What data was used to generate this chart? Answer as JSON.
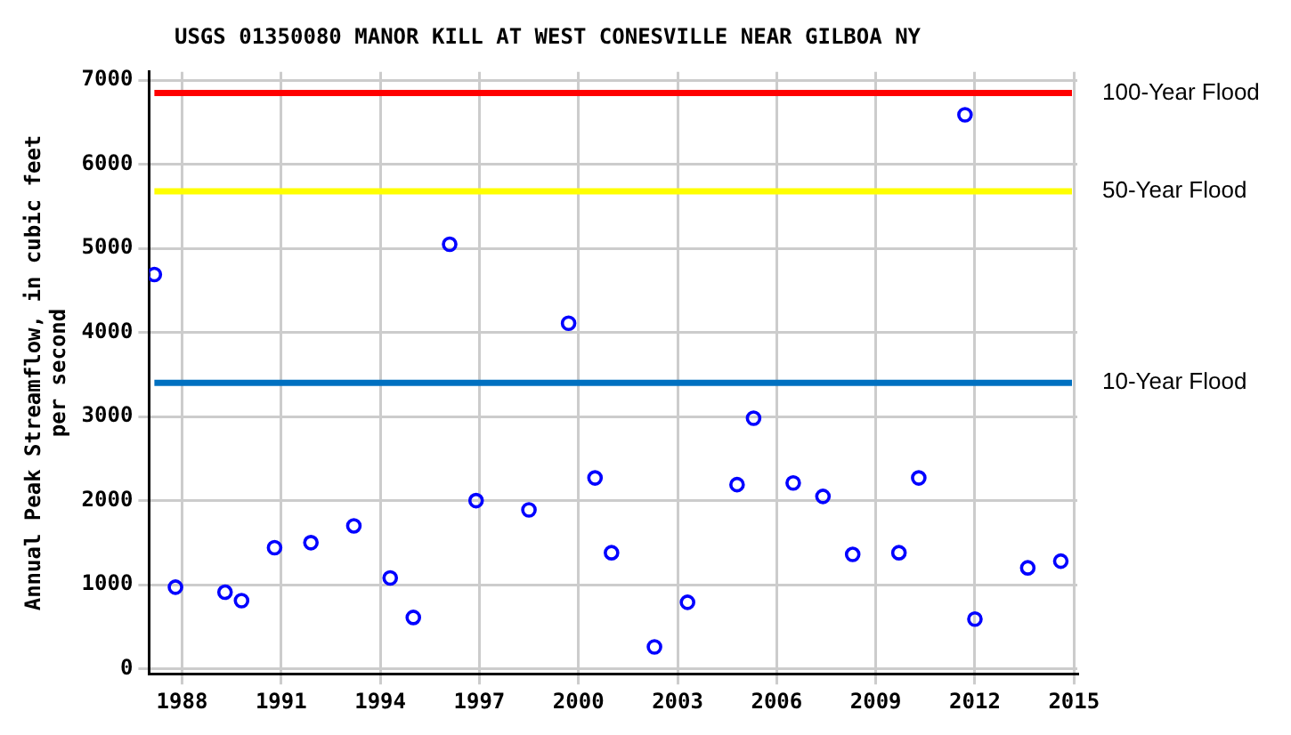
{
  "chart_data": {
    "type": "scatter",
    "title": "USGS 01350080 MANOR KILL AT WEST CONESVILLE NEAR GILBOA NY",
    "ylabel": "Annual Peak Streamflow, in cubic feet per second",
    "x": [
      1987.16,
      1987.8,
      1989.3,
      1989.8,
      1990.8,
      1991.9,
      1993.2,
      1994.3,
      1995.0,
      1996.1,
      1996.9,
      1998.5,
      1999.7,
      2000.5,
      2001.0,
      2002.3,
      2003.3,
      2004.8,
      2005.3,
      2006.5,
      2007.4,
      2008.3,
      2009.7,
      2010.3,
      2011.7,
      2012.0,
      2013.6,
      2014.6
    ],
    "series": [
      {
        "color": "#0000ff",
        "values": [
          4690,
          970,
          910,
          810,
          1440,
          1500,
          1700,
          1080,
          610,
          5050,
          2000,
          1890,
          4110,
          2270,
          1380,
          260,
          790,
          2190,
          2980,
          2210,
          2050,
          1360,
          1380,
          2270,
          6590,
          590,
          1200,
          1280
        ]
      }
    ],
    "xlim": [
      1987,
      2015.1
    ],
    "ylim": [
      -60,
      7100
    ],
    "xticks": [
      1988,
      1991,
      1994,
      1997,
      2000,
      2003,
      2006,
      2009,
      2012,
      2015
    ],
    "yticks": [
      0,
      1000,
      2000,
      3000,
      4000,
      5000,
      6000,
      7000
    ],
    "ref_lines": [
      {
        "axis": "y",
        "value": 6850,
        "label": "100-Year Flood",
        "color": "#ff0000"
      },
      {
        "axis": "y",
        "value": 5680,
        "label": "50-Year Flood",
        "color": "#ffff00"
      },
      {
        "axis": "y",
        "value": 3400,
        "label": "10-Year Flood",
        "color": "#0070c0"
      }
    ],
    "grid": true,
    "legend": false,
    "marker": "circle"
  }
}
